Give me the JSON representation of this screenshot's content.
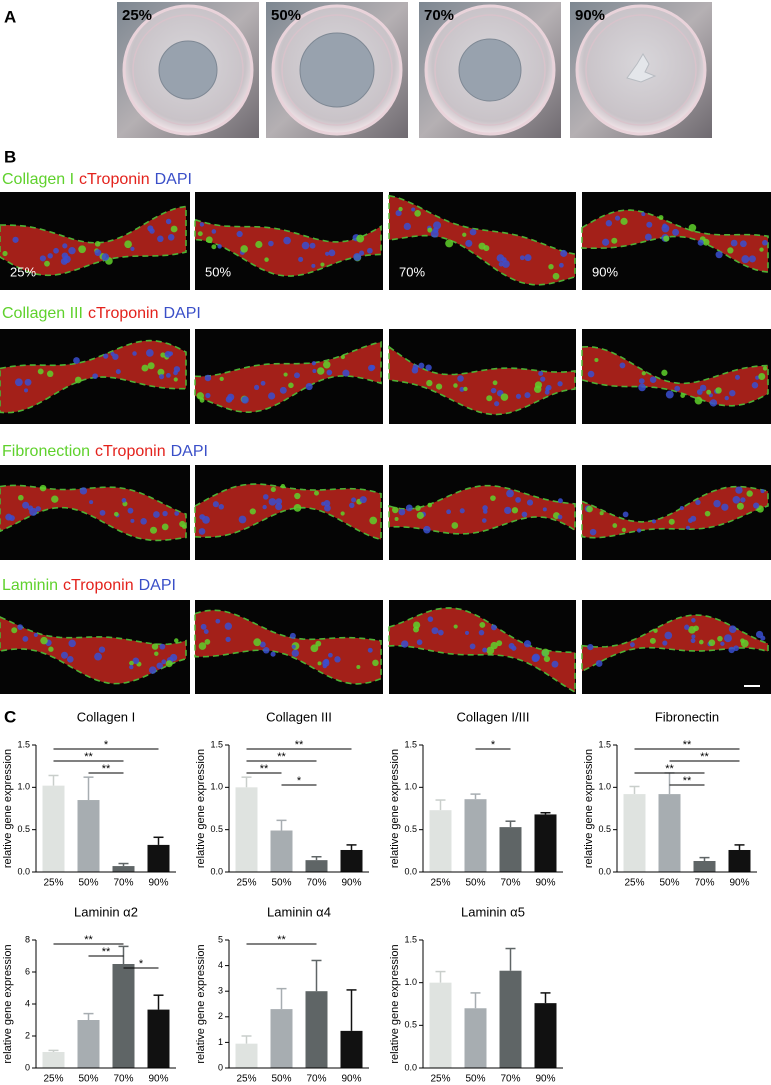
{
  "panel_a": {
    "label": "A",
    "labels": [
      "25%",
      "50%",
      "70%",
      "90%"
    ]
  },
  "panel_b": {
    "label": "B",
    "labels": [
      "25%",
      "50%",
      "70%",
      "90%"
    ],
    "rows": [
      {
        "stains": [
          {
            "text": "Collagen I",
            "color": "#5fd12c"
          },
          {
            "text": "cTroponin",
            "color": "#e3221c"
          },
          {
            "text": "DAPI",
            "color": "#3a4fc8"
          }
        ]
      },
      {
        "stains": [
          {
            "text": "Collagen III",
            "color": "#5fd12c"
          },
          {
            "text": "cTroponin",
            "color": "#e3221c"
          },
          {
            "text": "DAPI",
            "color": "#3a4fc8"
          }
        ]
      },
      {
        "stains": [
          {
            "text": "Fibronection",
            "color": "#5fd12c"
          },
          {
            "text": "cTroponin",
            "color": "#e3221c"
          },
          {
            "text": "DAPI",
            "color": "#3a4fc8"
          }
        ]
      },
      {
        "stains": [
          {
            "text": "Laminin",
            "color": "#5fd12c"
          },
          {
            "text": "cTroponin",
            "color": "#e3221c"
          },
          {
            "text": "DAPI",
            "color": "#3a4fc8"
          }
        ]
      }
    ]
  },
  "panel_c": {
    "label": "C"
  },
  "chart_data": [
    {
      "type": "bar",
      "title": "Collagen I",
      "y_label": "relative gene expression",
      "categories": [
        "25%",
        "50%",
        "70%",
        "90%"
      ],
      "values": [
        1.02,
        0.85,
        0.07,
        0.32
      ],
      "errors": [
        0.12,
        0.27,
        0.03,
        0.09
      ],
      "colors": [
        "#dfe3e0",
        "#a7adb1",
        "#5f6566",
        "#111111"
      ],
      "ylim": [
        0,
        1.5
      ],
      "yticks": [
        {
          "value": 0,
          "label": "0.0"
        },
        0.5,
        {
          "value": 1,
          "label": "1.0"
        },
        1.5
      ],
      "significance": [
        {
          "pair": [
            0,
            3
          ],
          "label": "*"
        },
        {
          "pair": [
            0,
            2
          ],
          "label": "**"
        },
        {
          "pair": [
            1,
            2
          ],
          "label": "**"
        }
      ]
    },
    {
      "type": "bar",
      "title": "Collagen III",
      "y_label": "relative gene expression",
      "categories": [
        "25%",
        "50%",
        "70%",
        "90%"
      ],
      "values": [
        1.0,
        0.49,
        0.14,
        0.26
      ],
      "errors": [
        0.12,
        0.12,
        0.04,
        0.06
      ],
      "colors": [
        "#dfe3e0",
        "#a7adb1",
        "#5f6566",
        "#111111"
      ],
      "ylim": [
        0,
        1.5
      ],
      "yticks": [
        {
          "value": 0,
          "label": "0.0"
        },
        0.5,
        {
          "value": 1,
          "label": "1.0"
        },
        1.5
      ],
      "significance": [
        {
          "pair": [
            0,
            3
          ],
          "label": "**"
        },
        {
          "pair": [
            0,
            2
          ],
          "label": "**"
        },
        {
          "pair": [
            0,
            1
          ],
          "label": "**"
        },
        {
          "pair": [
            1,
            2
          ],
          "label": "*"
        }
      ]
    },
    {
      "type": "bar",
      "title": "Collagen I/III",
      "y_label": "relative gene expression",
      "categories": [
        "25%",
        "50%",
        "70%",
        "90%"
      ],
      "values": [
        0.73,
        0.86,
        0.53,
        0.68
      ],
      "errors": [
        0.12,
        0.06,
        0.07,
        0.02
      ],
      "colors": [
        "#dfe3e0",
        "#a7adb1",
        "#5f6566",
        "#111111"
      ],
      "ylim": [
        0,
        1.5
      ],
      "yticks": [
        {
          "value": 0,
          "label": "0.0"
        },
        0.5,
        {
          "value": 1,
          "label": "1.0"
        },
        1.5
      ],
      "significance": [
        {
          "pair": [
            1,
            2
          ],
          "label": "*"
        }
      ]
    },
    {
      "type": "bar",
      "title": "Fibronectin",
      "y_label": "relative gene expression",
      "categories": [
        "25%",
        "50%",
        "70%",
        "90%"
      ],
      "values": [
        0.92,
        0.92,
        0.13,
        0.26
      ],
      "errors": [
        0.09,
        0.25,
        0.04,
        0.06
      ],
      "colors": [
        "#dfe3e0",
        "#a7adb1",
        "#5f6566",
        "#111111"
      ],
      "ylim": [
        0,
        1.5
      ],
      "yticks": [
        {
          "value": 0,
          "label": "0.0"
        },
        0.5,
        {
          "value": 1,
          "label": "1.0"
        },
        1.5
      ],
      "significance": [
        {
          "pair": [
            0,
            3
          ],
          "label": "**"
        },
        {
          "pair": [
            1,
            3
          ],
          "label": "**"
        },
        {
          "pair": [
            0,
            2
          ],
          "label": "**"
        },
        {
          "pair": [
            1,
            2
          ],
          "label": "**"
        }
      ]
    },
    {
      "type": "bar",
      "title": "Laminin α2",
      "y_label": "relative gene expression",
      "categories": [
        "25%",
        "50%",
        "70%",
        "90%"
      ],
      "values": [
        1.0,
        3.0,
        6.5,
        3.65
      ],
      "errors": [
        0.1,
        0.4,
        1.1,
        0.9
      ],
      "colors": [
        "#dfe3e0",
        "#a7adb1",
        "#5f6566",
        "#111111"
      ],
      "ylim": [
        0,
        8
      ],
      "yticks": [
        0,
        2,
        4,
        6,
        8
      ],
      "significance": [
        {
          "pair": [
            0,
            2
          ],
          "label": "**"
        },
        {
          "pair": [
            1,
            2
          ],
          "label": "**"
        },
        {
          "pair": [
            2,
            3
          ],
          "label": "*"
        }
      ]
    },
    {
      "type": "bar",
      "title": "Laminin α4",
      "y_label": "relative gene expression",
      "categories": [
        "25%",
        "50%",
        "70%",
        "90%"
      ],
      "values": [
        0.95,
        2.3,
        3.0,
        1.45
      ],
      "errors": [
        0.3,
        0.8,
        1.2,
        1.6
      ],
      "colors": [
        "#dfe3e0",
        "#a7adb1",
        "#5f6566",
        "#111111"
      ],
      "ylim": [
        0,
        5
      ],
      "yticks": [
        0,
        1,
        2,
        3,
        4,
        5
      ],
      "significance": [
        {
          "pair": [
            0,
            2
          ],
          "label": "**"
        }
      ]
    },
    {
      "type": "bar",
      "title": "Laminin α5",
      "y_label": "relative gene expression",
      "categories": [
        "25%",
        "50%",
        "70%",
        "90%"
      ],
      "values": [
        1.0,
        0.7,
        1.14,
        0.76
      ],
      "errors": [
        0.13,
        0.18,
        0.26,
        0.12
      ],
      "colors": [
        "#dfe3e0",
        "#a7adb1",
        "#5f6566",
        "#111111"
      ],
      "ylim": [
        0,
        1.5
      ],
      "yticks": [
        {
          "value": 0,
          "label": "0.0"
        },
        0.5,
        {
          "value": 1,
          "label": "1.0"
        },
        1.5
      ],
      "significance": []
    }
  ]
}
